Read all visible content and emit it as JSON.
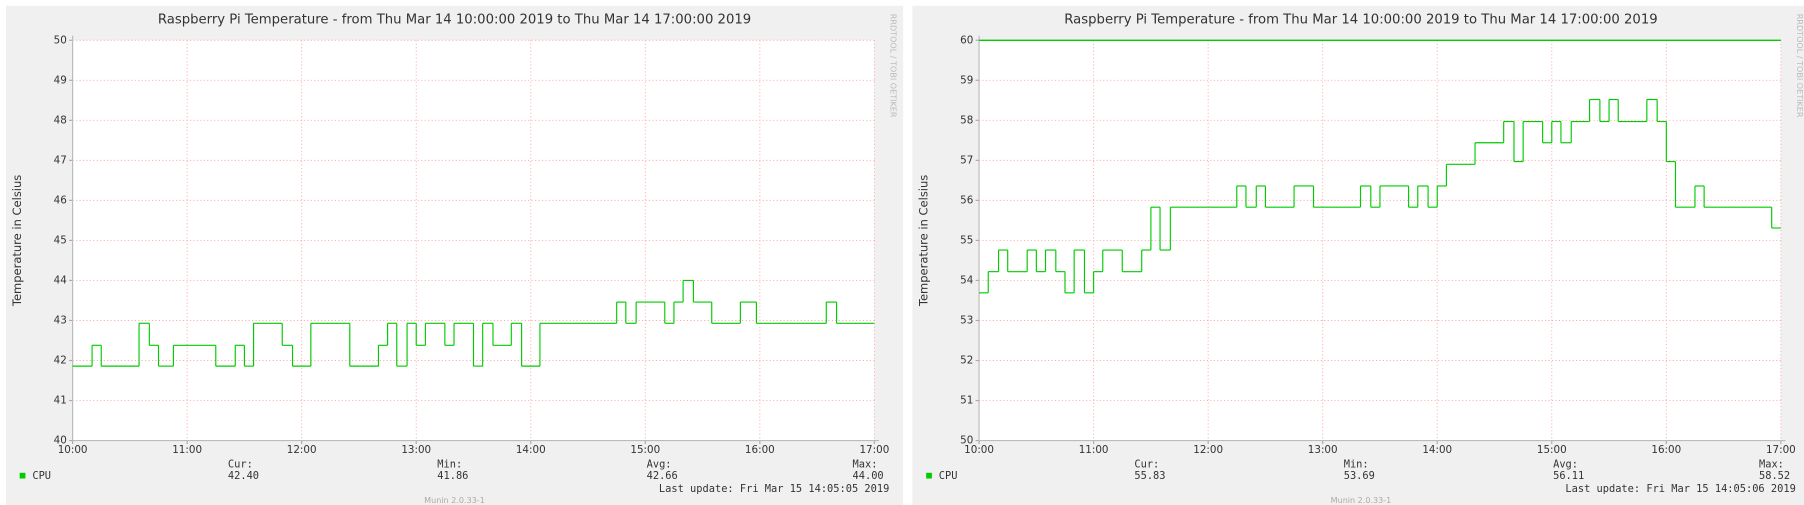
{
  "chart_data": [
    {
      "type": "line",
      "step": true,
      "title": "Raspberry Pi Temperature - from Thu Mar 14 10:00:00 2019 to Thu Mar 14 17:00:00 2019",
      "ylabel": "Temperature in Celsius",
      "watermark": "RRDTOOL / TOBI OETIKER",
      "x": [
        10.0,
        10.17,
        10.25,
        10.58,
        10.67,
        10.75,
        10.88,
        11.25,
        11.42,
        11.5,
        11.58,
        11.83,
        11.92,
        12.08,
        12.42,
        12.67,
        12.75,
        12.83,
        12.92,
        13.0,
        13.08,
        13.25,
        13.33,
        13.5,
        13.58,
        13.67,
        13.83,
        13.92,
        14.08,
        14.75,
        14.83,
        14.92,
        15.17,
        15.25,
        15.33,
        15.42,
        15.58,
        15.83,
        15.97,
        16.58,
        16.67,
        17.0
      ],
      "series": [
        {
          "name": "CPU",
          "color": "#00cc00",
          "values": [
            41.86,
            42.38,
            41.86,
            42.93,
            42.38,
            41.86,
            42.38,
            41.86,
            42.38,
            41.86,
            42.93,
            42.38,
            41.86,
            42.93,
            41.86,
            42.38,
            42.93,
            41.86,
            42.93,
            42.38,
            42.93,
            42.38,
            42.93,
            41.86,
            42.93,
            42.38,
            42.93,
            41.86,
            42.93,
            43.46,
            42.93,
            43.46,
            42.93,
            43.46,
            44.0,
            43.46,
            42.93,
            43.46,
            42.93,
            43.46,
            42.93,
            42.93
          ]
        }
      ],
      "xlim": [
        10,
        17
      ],
      "xticks": [
        {
          "value": 10,
          "label": "10:00"
        },
        {
          "value": 11,
          "label": "11:00"
        },
        {
          "value": 12,
          "label": "12:00"
        },
        {
          "value": 13,
          "label": "13:00"
        },
        {
          "value": 14,
          "label": "14:00"
        },
        {
          "value": 15,
          "label": "15:00"
        },
        {
          "value": 16,
          "label": "16:00"
        },
        {
          "value": 17,
          "label": "17:00"
        }
      ],
      "ylim": [
        40,
        50
      ],
      "yticks": [
        40,
        41,
        42,
        43,
        44,
        45,
        46,
        47,
        48,
        49,
        50
      ],
      "grid": true,
      "stats": [
        {
          "label": "Cur:",
          "value": "42.40"
        },
        {
          "label": "Min:",
          "value": "41.86"
        },
        {
          "label": "Avg:",
          "value": "42.66"
        },
        {
          "label": "Max:",
          "value": "44.00"
        }
      ],
      "last_update": "Last update: Fri Mar 15 14:05:05 2019",
      "footer": "Munin 2.0.33-1"
    },
    {
      "type": "line",
      "step": true,
      "title": "Raspberry Pi Temperature - from Thu Mar 14 10:00:00 2019 to Thu Mar 14 17:00:00 2019",
      "ylabel": "Temperature in Celsius",
      "watermark": "RRDTOOL / TOBI OETIKER",
      "x": [
        10.0,
        10.08,
        10.17,
        10.25,
        10.42,
        10.5,
        10.58,
        10.67,
        10.75,
        10.83,
        10.92,
        11.0,
        11.08,
        11.25,
        11.42,
        11.5,
        11.58,
        11.67,
        12.25,
        12.33,
        12.42,
        12.5,
        12.75,
        12.92,
        13.33,
        13.42,
        13.5,
        13.75,
        13.83,
        13.92,
        14.0,
        14.08,
        14.33,
        14.58,
        14.67,
        14.75,
        14.92,
        15.0,
        15.08,
        15.17,
        15.33,
        15.42,
        15.5,
        15.58,
        15.83,
        15.92,
        16.0,
        16.08,
        16.25,
        16.33,
        16.92,
        17.0
      ],
      "series": [
        {
          "name": "CPU",
          "color": "#00cc00",
          "values": [
            53.69,
            54.22,
            54.76,
            54.22,
            54.76,
            54.22,
            54.76,
            54.22,
            53.69,
            54.76,
            53.69,
            54.22,
            54.76,
            54.22,
            54.76,
            55.83,
            54.76,
            55.83,
            56.36,
            55.83,
            56.36,
            55.83,
            56.36,
            55.83,
            56.36,
            55.83,
            56.36,
            55.83,
            56.36,
            55.83,
            56.36,
            56.9,
            57.44,
            57.97,
            56.97,
            57.97,
            57.44,
            57.97,
            57.44,
            57.97,
            58.52,
            57.97,
            58.52,
            57.97,
            58.52,
            57.97,
            56.97,
            55.83,
            56.36,
            55.83,
            55.31,
            55.31
          ]
        }
      ],
      "reference_line": {
        "value": 60,
        "color": "#00cc00"
      },
      "xlim": [
        10,
        17
      ],
      "xticks": [
        {
          "value": 10,
          "label": "10:00"
        },
        {
          "value": 11,
          "label": "11:00"
        },
        {
          "value": 12,
          "label": "12:00"
        },
        {
          "value": 13,
          "label": "13:00"
        },
        {
          "value": 14,
          "label": "14:00"
        },
        {
          "value": 15,
          "label": "15:00"
        },
        {
          "value": 16,
          "label": "16:00"
        },
        {
          "value": 17,
          "label": "17:00"
        }
      ],
      "ylim": [
        50,
        60
      ],
      "yticks": [
        50,
        51,
        52,
        53,
        54,
        55,
        56,
        57,
        58,
        59,
        60
      ],
      "grid": true,
      "stats": [
        {
          "label": "Cur:",
          "value": "55.83"
        },
        {
          "label": "Min:",
          "value": "53.69"
        },
        {
          "label": "Avg:",
          "value": "56.11"
        },
        {
          "label": "Max:",
          "value": "58.52"
        }
      ],
      "last_update": "Last update: Fri Mar 15 14:05:06 2019",
      "footer": "Munin 2.0.33-1"
    }
  ]
}
